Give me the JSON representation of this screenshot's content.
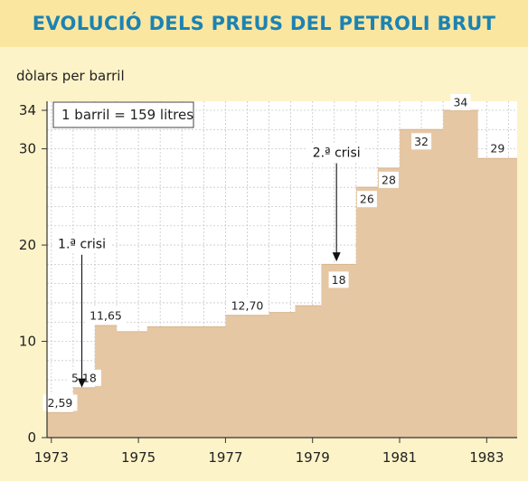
{
  "title": "EVOLUCIÓ DELS PREUS DEL PETROLI BRUT",
  "chart_data": {
    "type": "area",
    "step": true,
    "ylabel": "dòlars per barril",
    "note": "1 barril = 159 litres",
    "ylim": [
      0,
      34
    ],
    "yticks": [
      0,
      10,
      20,
      30,
      34
    ],
    "xlim": [
      1972.9,
      1983.7
    ],
    "xticks": [
      1973,
      1975,
      1977,
      1979,
      1981,
      1983
    ],
    "grid": true,
    "fill_color": "#e6c7a4",
    "steps": [
      {
        "start": 1972.9,
        "end": 1973.5,
        "value": 2.59,
        "label": "2,59"
      },
      {
        "start": 1973.5,
        "end": 1974.0,
        "value": 5.18,
        "label": "5,18"
      },
      {
        "start": 1974.0,
        "end": 1974.5,
        "value": 11.65,
        "label": "11,65"
      },
      {
        "start": 1974.5,
        "end": 1975.2,
        "value": 11.0,
        "label": ""
      },
      {
        "start": 1975.2,
        "end": 1976.0,
        "value": 11.5,
        "label": ""
      },
      {
        "start": 1976.0,
        "end": 1977.0,
        "value": 11.5,
        "label": ""
      },
      {
        "start": 1977.0,
        "end": 1978.0,
        "value": 12.7,
        "label": "12,70"
      },
      {
        "start": 1978.0,
        "end": 1978.6,
        "value": 13.0,
        "label": ""
      },
      {
        "start": 1978.6,
        "end": 1979.2,
        "value": 13.7,
        "label": ""
      },
      {
        "start": 1979.2,
        "end": 1980.0,
        "value": 18,
        "label": "18"
      },
      {
        "start": 1980.0,
        "end": 1980.5,
        "value": 26,
        "label": "26"
      },
      {
        "start": 1980.5,
        "end": 1981.0,
        "value": 28,
        "label": "28"
      },
      {
        "start": 1981.0,
        "end": 1982.0,
        "value": 32,
        "label": "32"
      },
      {
        "start": 1982.0,
        "end": 1982.8,
        "value": 34,
        "label": "34"
      },
      {
        "start": 1982.8,
        "end": 1983.7,
        "value": 29,
        "label": "29"
      }
    ],
    "annotations": [
      {
        "text": "1.ª crisi",
        "x": 1973.7,
        "y_top": 19,
        "y_bottom": 5.2
      },
      {
        "text": "2.ª crisi",
        "x": 1979.55,
        "y_top": 28.5,
        "y_bottom": 18.3
      }
    ]
  }
}
